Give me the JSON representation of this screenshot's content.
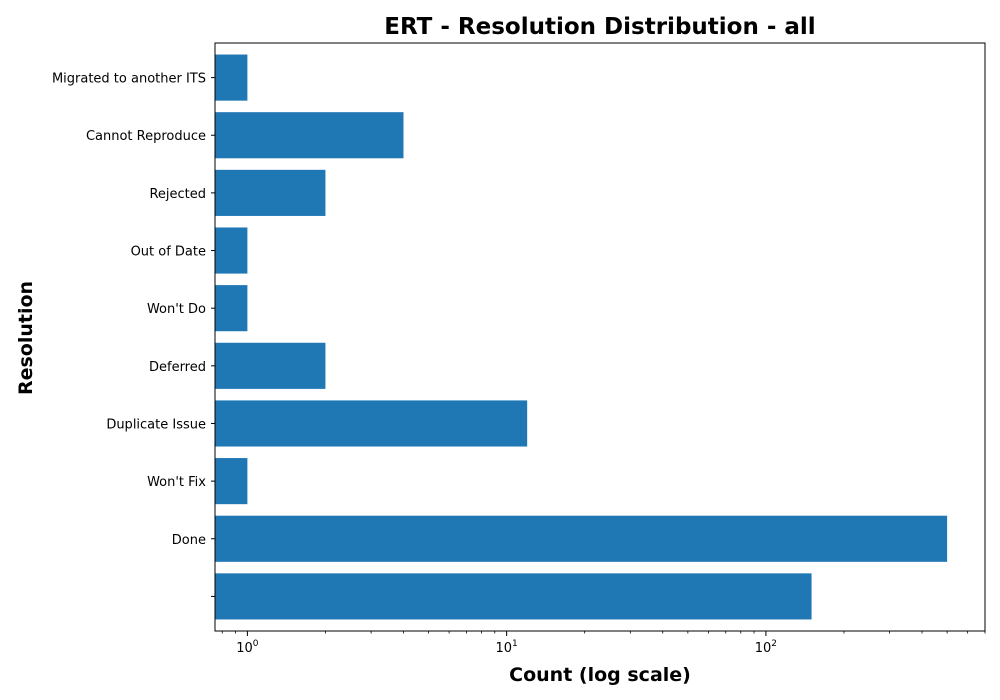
{
  "chart_data": {
    "type": "bar",
    "orientation": "horizontal",
    "title": "ERT - Resolution Distribution - all",
    "xlabel": "Count (log scale)",
    "ylabel": "Resolution",
    "x_scale": "log",
    "xlim": [
      0.75,
      700
    ],
    "x_ticks": [
      {
        "value": 1,
        "base": "10",
        "exp": "0"
      },
      {
        "value": 10,
        "base": "10",
        "exp": "1"
      },
      {
        "value": 100,
        "base": "10",
        "exp": "2"
      }
    ],
    "categories": [
      "",
      "Done",
      "Won't Fix",
      "Duplicate Issue",
      "Deferred",
      "Won't Do",
      "Out of Date",
      "Rejected",
      "Cannot Reproduce",
      "Migrated to another ITS"
    ],
    "values": [
      150,
      500,
      1,
      12,
      2,
      1,
      1,
      2,
      4,
      1
    ],
    "bar_color": "#1f77b4",
    "grid": false,
    "legend": "none"
  }
}
